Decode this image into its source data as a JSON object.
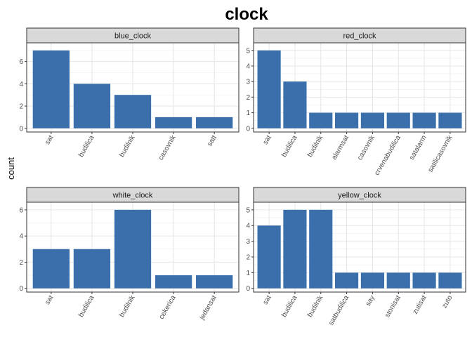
{
  "chart_data": {
    "type": "bar",
    "title": "clock",
    "ylabel": "count",
    "xlabel": "",
    "bar_color": "#3A6FAB",
    "strip_color": "#D9D9D9",
    "grid": true,
    "facets": [
      {
        "name": "blue_clock",
        "categories": [
          "sat",
          "budilica",
          "budilnik",
          "casovnik",
          "satt"
        ],
        "values": [
          7,
          4,
          3,
          1,
          1
        ],
        "ylim": [
          0,
          7.35
        ],
        "yticks": [
          0,
          2,
          4,
          6
        ]
      },
      {
        "name": "red_clock",
        "categories": [
          "sat",
          "budilica",
          "budilnik",
          "alarmsat",
          "casovnik",
          "crvenabudilica",
          "satalarm",
          "satilicasovnik"
        ],
        "values": [
          5,
          3,
          1,
          1,
          1,
          1,
          1,
          1
        ],
        "ylim": [
          0,
          5.25
        ],
        "yticks": [
          0,
          1,
          2,
          3,
          4,
          5
        ]
      },
      {
        "name": "white_clock",
        "categories": [
          "sat",
          "budilica",
          "budilnik",
          "cekerica",
          "jedansat"
        ],
        "values": [
          3,
          3,
          6,
          1,
          1
        ],
        "ylim": [
          0,
          6.3
        ],
        "yticks": [
          0,
          2,
          4,
          6
        ]
      },
      {
        "name": "yellow_clock",
        "categories": [
          "sat",
          "budilica",
          "budilnik",
          "satbudilica",
          "say",
          "stonisat",
          "zutisat",
          "zuto"
        ],
        "values": [
          4,
          5,
          5,
          1,
          1,
          1,
          1,
          1
        ],
        "ylim": [
          0,
          5.25
        ],
        "yticks": [
          0,
          1,
          2,
          3,
          4,
          5
        ]
      }
    ]
  }
}
